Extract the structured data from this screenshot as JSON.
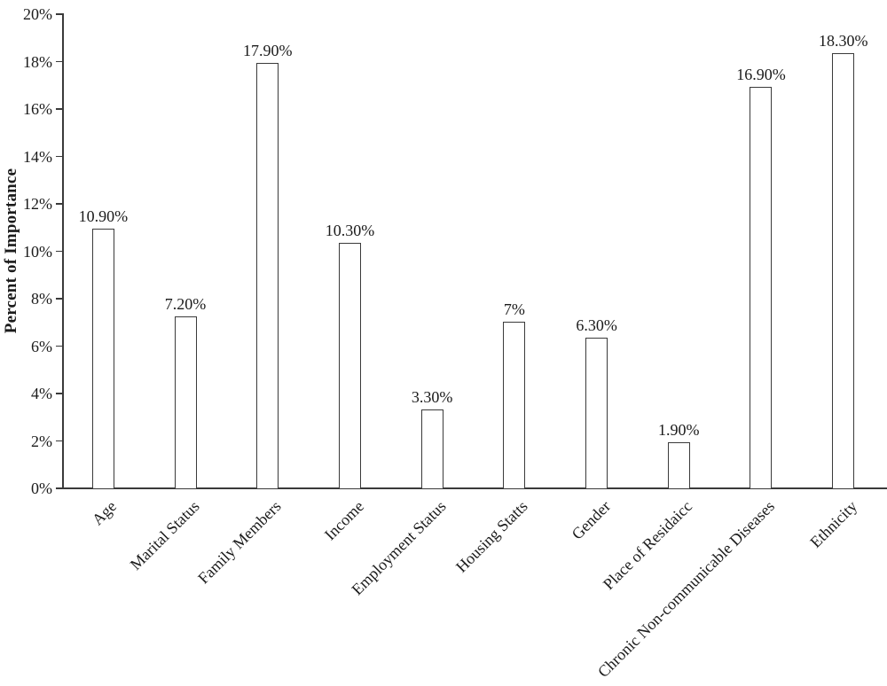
{
  "chart_data": {
    "type": "bar",
    "title": "",
    "xlabel": "",
    "ylabel": "Percent of Importance",
    "categories": [
      "Age",
      "Marital Status",
      "Family Members",
      "Income",
      "Employment Status",
      "Housing Statts",
      "Gender",
      "Place of Residaicc",
      "Chronic Non-communicable Diseases",
      "Ethnicity"
    ],
    "values": [
      10.9,
      7.2,
      17.9,
      10.3,
      3.3,
      7.0,
      6.3,
      1.9,
      16.9,
      18.3
    ],
    "value_labels": [
      "10.90%",
      "7.20%",
      "17.90%",
      "10.30%",
      "3.30%",
      "7%",
      "6.30%",
      "1.90%",
      "16.90%",
      "18.30%"
    ],
    "ylim": [
      0,
      20
    ],
    "ytick_step": 2,
    "ytick_labels": [
      "0%",
      "2%",
      "4%",
      "6%",
      "8%",
      "10%",
      "12%",
      "14%",
      "16%",
      "18%",
      "20%"
    ],
    "grid": false,
    "legend": "none",
    "bar_fill": "#ffffff",
    "bar_outline": "#3a3a3a",
    "axis_color": "#3a3a3a",
    "text_color": "#1b1b1b"
  }
}
